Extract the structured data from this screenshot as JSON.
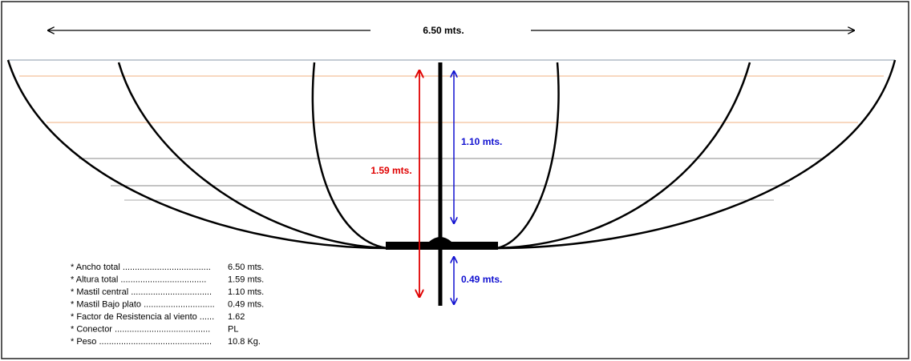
{
  "dimensions": {
    "width": "6.50 mts.",
    "height": "1.59 mts.",
    "mast_above": "1.10 mts.",
    "mast_below": "0.49 mts."
  },
  "specs": [
    {
      "label": "* Ancho total ....................................",
      "value": "6.50 mts."
    },
    {
      "label": "* Altura total ...................................",
      "value": "1.59 mts."
    },
    {
      "label": "* Mastil central .................................",
      "value": "1.10 mts."
    },
    {
      "label": "* Mastil Bajo plato .............................",
      "value": "0.49 mts."
    },
    {
      "label": "* Factor de Resistencia al viento ......",
      "value": "1.62"
    },
    {
      "label": "* Conector .......................................",
      "value": "PL"
    },
    {
      "label": "* Peso ..............................................",
      "value": "10.8 Kg."
    }
  ]
}
